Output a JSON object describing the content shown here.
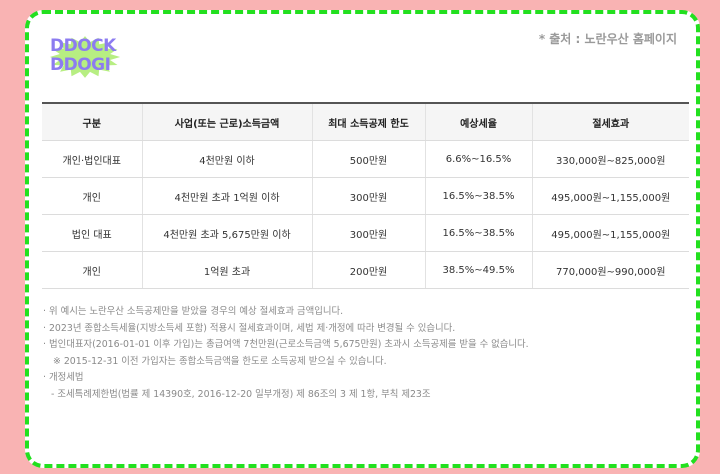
{
  "logo": {
    "line1": "DDOCK",
    "line2": "DDOGI",
    "badge_color": "#b7ee82",
    "text_color": "#8c7cf0"
  },
  "source": "* 출처 : 노란우산 홈페이지",
  "table": {
    "headers": [
      "구분",
      "사업(또는 근로)소득금액",
      "최대 소득공제 한도",
      "예상세율",
      "절세효과"
    ],
    "rows": [
      [
        "개인·법인대표",
        "4천만원 이하",
        "500만원",
        "6.6%~16.5%",
        "330,000원~825,000원"
      ],
      [
        "개인",
        "4천만원 초과 1억원 이하",
        "300만원",
        "16.5%~38.5%",
        "495,000원~1,155,000원"
      ],
      [
        "법인 대표",
        "4천만원 초과 5,675만원 이하",
        "300만원",
        "16.5%~38.5%",
        "495,000원~1,155,000원"
      ],
      [
        "개인",
        "1억원 초과",
        "200만원",
        "38.5%~49.5%",
        "770,000원~990,000원"
      ]
    ]
  },
  "notes": [
    "· 위 예시는 노란우산 소득공제만을 받았을 경우의 예상 절세효과 금액입니다.",
    "· 2023년 종합소득세율(지방소득세 포함) 적용시 절세효과이며, 세법 제·개정에 따라 변경될 수 있습니다.",
    "· 법인대표자(2016-01-01 이후 가입)는 총급여액 7천만원(근로소득금액 5,675만원) 초과시 소득공제를 받을 수 없습니다.",
    "※ 2015-12-31 이전 가입자는 종합소득금액을 한도로 소득공제 받으실 수 있습니다.",
    "· 개정세법",
    "- 조세특례제한법(법률 제 14390호, 2016-12-20 일부개정) 제 86조의 3 제 1항, 부칙 제23조"
  ],
  "colors": {
    "background": "#f9b3b3",
    "border": "#22e01f"
  }
}
